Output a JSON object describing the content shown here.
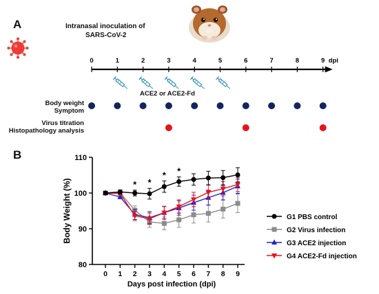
{
  "panel_a": {
    "letter": "A",
    "title_line1": "Intranasal inoculation of",
    "title_line2": "SARS-CoV-2",
    "timeline_ticks": [
      "0",
      "1",
      "2",
      "3",
      "4",
      "5",
      "6",
      "7",
      "8",
      "9"
    ],
    "timeline_unit": "dpi",
    "injection_days": [
      1,
      2,
      3,
      4,
      5
    ],
    "treatment_label": "ACE2 or ACE2-Fd",
    "row1_line1": "Body weight",
    "row1_line2": "Symptom",
    "row1_days": [
      0,
      1,
      2,
      3,
      4,
      5,
      6,
      7,
      8,
      9
    ],
    "row2_line1": "Virus titration",
    "row2_line2": "Histopathology analysis",
    "row2_days": [
      3,
      6,
      9
    ],
    "colors": {
      "navy_dot": "#16245e",
      "red_dot": "#e8121a",
      "syringe": "#2f8fbf"
    }
  },
  "panel_b": {
    "letter": "B"
  },
  "chart_data": {
    "type": "line",
    "x": [
      0,
      1,
      2,
      3,
      4,
      5,
      6,
      7,
      8,
      9
    ],
    "xlabel": "Days post infection (dpi)",
    "ylabel": "Body Weight (%)",
    "ylim": [
      80,
      110
    ],
    "yticks": [
      80,
      90,
      100,
      110
    ],
    "xticks": [
      "0",
      "1",
      "2",
      "3",
      "4",
      "5",
      "6",
      "7",
      "8",
      "9"
    ],
    "legend_position": "right",
    "significance_marker": "*",
    "significance_x": [
      2,
      3,
      4,
      5
    ],
    "series": [
      {
        "name": "G1 PBS control",
        "color": "#000000",
        "marker": "circle",
        "values": [
          100,
          100.3,
          100,
          99.8,
          101.8,
          103.2,
          103.8,
          104.2,
          104.3,
          105.1
        ],
        "errors": [
          0.4,
          0.6,
          0.8,
          1.5,
          1.6,
          1.3,
          1.6,
          1.9,
          2.0,
          2.0
        ]
      },
      {
        "name": "G2 Virus infection",
        "color": "#8c8c8c",
        "marker": "square",
        "values": [
          100,
          100.1,
          95.2,
          91.9,
          91.5,
          92.5,
          93.9,
          94.3,
          95.5,
          97.1
        ],
        "errors": [
          0.3,
          0.5,
          1.2,
          1.5,
          1.8,
          2.1,
          2.3,
          2.4,
          2.5,
          2.6
        ]
      },
      {
        "name": "G3 ACE2 injection",
        "color": "#2323c8",
        "marker": "triangle-up",
        "values": [
          100,
          98.9,
          94.0,
          93.1,
          94.5,
          95.8,
          97.3,
          98.7,
          100.1,
          101.9
        ],
        "errors": [
          0.3,
          0.5,
          1.4,
          1.7,
          1.8,
          2.0,
          2.1,
          2.1,
          2.0,
          2.0
        ]
      },
      {
        "name": "G4 ACE2-Fd injection",
        "color": "#e8121a",
        "marker": "triangle-down",
        "values": [
          100,
          99.9,
          93.6,
          92.8,
          94.5,
          96.2,
          98.2,
          100.2,
          101.2,
          102.4
        ],
        "errors": [
          0.3,
          0.5,
          1.3,
          1.6,
          1.7,
          1.9,
          2.0,
          2.0,
          2.0,
          2.0
        ]
      }
    ]
  }
}
